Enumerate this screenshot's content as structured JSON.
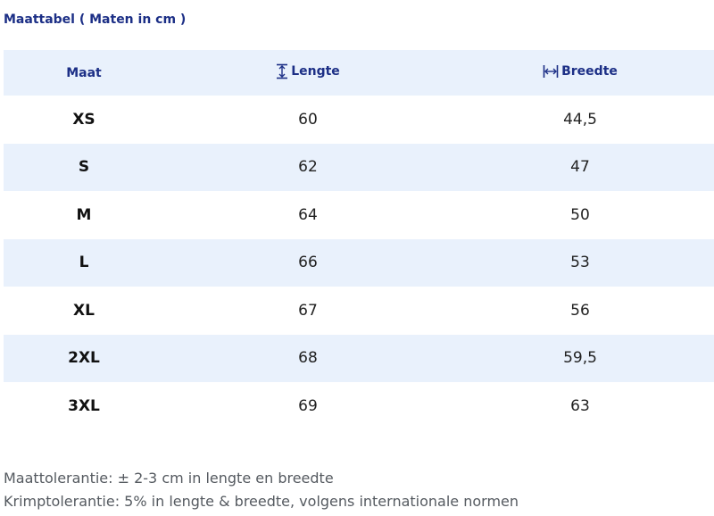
{
  "title": "Maattabel ( Maten in cm )",
  "table": {
    "headers": {
      "size": "Maat",
      "length": "Lengte",
      "width": "Breedte"
    },
    "header_icons": {
      "length": "vertical-measure-icon",
      "width": "horizontal-measure-icon"
    },
    "rows": [
      {
        "size": "XS",
        "length": "60",
        "width": "44,5"
      },
      {
        "size": "S",
        "length": "62",
        "width": "47"
      },
      {
        "size": "M",
        "length": "64",
        "width": "50"
      },
      {
        "size": "L",
        "length": "66",
        "width": "53"
      },
      {
        "size": "XL",
        "length": "67",
        "width": "56"
      },
      {
        "size": "2XL",
        "length": "68",
        "width": "59,5"
      },
      {
        "size": "3XL",
        "length": "69",
        "width": "63"
      }
    ]
  },
  "notes": [
    "Maattolerantie: ± 2-3 cm in lengte en breedte",
    "Krimptolerantie: 5% in lengte & breedte, volgens internationale normen"
  ],
  "colors": {
    "heading": "#1c2f86",
    "stripe": "#e9f1fc",
    "body_text": "#222222",
    "note_text": "#555a60"
  }
}
